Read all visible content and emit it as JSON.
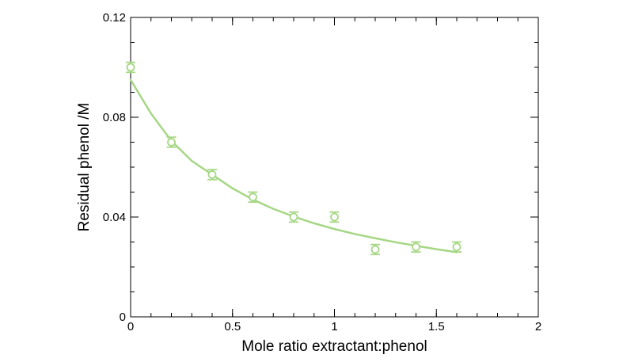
{
  "chart_data": {
    "type": "scatter",
    "title": "",
    "xlabel": "Mole ratio extractant:phenol",
    "ylabel": "Residual phenol /M",
    "xlim": [
      0,
      2
    ],
    "ylim": [
      0,
      0.12
    ],
    "x_ticks": [
      {
        "value": 0,
        "label": "0"
      },
      {
        "value": 0.5,
        "label": "0.5"
      },
      {
        "value": 1,
        "label": "1"
      },
      {
        "value": 1.5,
        "label": "1.5"
      },
      {
        "value": 2,
        "label": "2"
      }
    ],
    "y_ticks": [
      {
        "value": 0,
        "label": "0"
      },
      {
        "value": 0.04,
        "label": "0.04"
      },
      {
        "value": 0.08,
        "label": "0.08"
      },
      {
        "value": 0.12,
        "label": "0.12"
      }
    ],
    "x_minor_step": 0.1,
    "y_minor_step": 0.01,
    "grid": false,
    "legend": "none",
    "color": "#a6d785",
    "series": [
      {
        "marker": "open-circle",
        "x": [
          0,
          0.2,
          0.4,
          0.6,
          0.8,
          1.0,
          1.2,
          1.4,
          1.6
        ],
        "y": [
          0.1,
          0.07,
          0.057,
          0.048,
          0.04,
          0.04,
          0.027,
          0.028,
          0.028
        ],
        "error": [
          0.002,
          0.002,
          0.002,
          0.002,
          0.002,
          0.002,
          0.002,
          0.002,
          0.002
        ]
      }
    ],
    "fit_curve": {
      "x": [
        0,
        0.1,
        0.2,
        0.3,
        0.4,
        0.5,
        0.6,
        0.7,
        0.8,
        0.9,
        1.0,
        1.1,
        1.2,
        1.3,
        1.4,
        1.5,
        1.6
      ],
      "y": [
        0.095,
        0.0815,
        0.0705,
        0.0625,
        0.057,
        0.0515,
        0.047,
        0.0433,
        0.0402,
        0.0375,
        0.0352,
        0.0332,
        0.0315,
        0.0299,
        0.0285,
        0.0271,
        0.0259
      ]
    }
  }
}
